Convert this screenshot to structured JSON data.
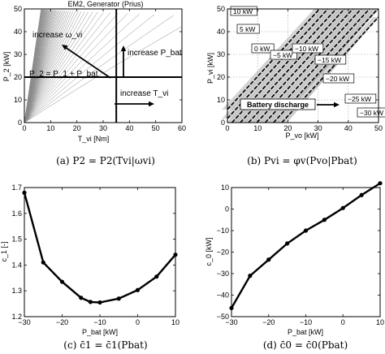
{
  "chart_data": [
    {
      "type": "line",
      "title": "EM2, Generator (Prius)",
      "xlabel": "T_vi [Nm]",
      "ylabel": "P_2 [kW]",
      "xlim": [
        0,
        60
      ],
      "ylim": [
        0,
        50
      ],
      "x_ticks": [
        "0",
        "10",
        "20",
        "30",
        "40",
        "50",
        "60"
      ],
      "y_ticks": [
        "0",
        "10",
        "20",
        "30",
        "40",
        "50"
      ],
      "grid": false,
      "reference_lines": {
        "vertical_x": 35,
        "horizontal_y": 20
      },
      "annotations": [
        "increase ω_vi",
        "increase P_bat",
        "P_2 = P_1 + P_bat",
        "increase T_vi"
      ],
      "caption": "(a)  P2 = P2(Tvi|ωvi)"
    },
    {
      "type": "line",
      "xlabel": "P_vo [kW]",
      "ylabel": "P_vi [kW]",
      "xlim": [
        0,
        50
      ],
      "ylim": [
        0,
        50
      ],
      "x_ticks": [
        "0",
        "10",
        "20",
        "30",
        "40",
        "50"
      ],
      "y_ticks": [
        "0",
        "10",
        "20",
        "30",
        "40",
        "50"
      ],
      "grid": true,
      "line_labels": [
        "10 kW",
        "5 kW",
        "0 kW",
        "−5 kW",
        "−10 kW",
        "−15 kW",
        "−20 kW",
        "−25 kW",
        "−30 kW"
      ],
      "line_offsets_kW": [
        10,
        5,
        0,
        -5,
        -10,
        -15,
        -20,
        -25,
        -30
      ],
      "annotation": "Battery discharge",
      "caption": "(b)  Pvi = φv(Pvo|Pbat)"
    },
    {
      "type": "line",
      "xlabel": "P_bat [kW]",
      "ylabel": "c_1 [-]",
      "xlim": [
        -30,
        10
      ],
      "ylim": [
        1.2,
        1.7
      ],
      "x_ticks": [
        "−30",
        "−20",
        "−10",
        "0",
        "10"
      ],
      "y_ticks": [
        "1.2",
        "1.3",
        "1.4",
        "1.5",
        "1.6",
        "1.7"
      ],
      "grid": false,
      "x": [
        -30,
        -25,
        -20,
        -15,
        -12.5,
        -10,
        -5,
        0,
        5,
        10
      ],
      "y": [
        1.68,
        1.41,
        1.335,
        1.273,
        1.257,
        1.255,
        1.27,
        1.303,
        1.355,
        1.44
      ],
      "caption": "(c)  c̄1 = c̄1(Pbat)"
    },
    {
      "type": "line",
      "xlabel": "P_bat [kW]",
      "ylabel": "c_0 [kW]",
      "xlim": [
        -30,
        10
      ],
      "ylim": [
        -50,
        10
      ],
      "x_ticks": [
        "−30",
        "−20",
        "−10",
        "0",
        "10"
      ],
      "y_ticks": [
        "−50",
        "−40",
        "−30",
        "−20",
        "−10",
        "0",
        "10"
      ],
      "grid": false,
      "x": [
        -30,
        -25,
        -20,
        -15,
        -10,
        -5,
        0,
        5,
        10
      ],
      "y": [
        -46,
        -31,
        -23.5,
        -16,
        -10,
        -5,
        0.5,
        6.5,
        12
      ],
      "caption": "(d)  c̄0 = c̄0(Pbat)"
    }
  ],
  "colors": {
    "axis": "#000000",
    "curves": "#000000",
    "gray_curves": "#8a8a8a"
  }
}
